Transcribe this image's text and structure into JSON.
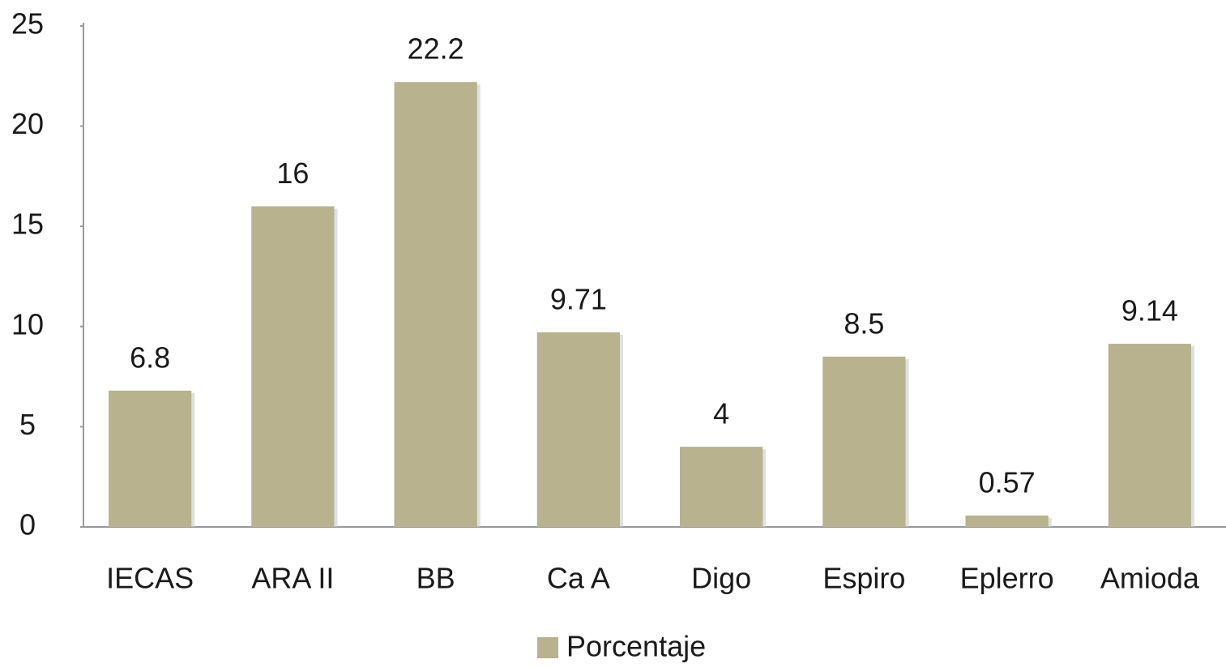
{
  "chart_data": {
    "type": "bar",
    "categories": [
      "IECAS",
      "ARA II",
      "BB",
      "Ca A",
      "Digo",
      "Espiro",
      "Eplerro",
      "Amioda"
    ],
    "series": [
      {
        "name": "Porcentaje",
        "color": "#b8b28f",
        "values": [
          6.8,
          16,
          22.2,
          9.71,
          4,
          8.5,
          0.57,
          9.14
        ]
      }
    ],
    "ylim": [
      0,
      25
    ],
    "yticks": [
      0,
      5,
      10,
      15,
      20,
      25
    ],
    "grid": false,
    "legend": "bottom"
  }
}
